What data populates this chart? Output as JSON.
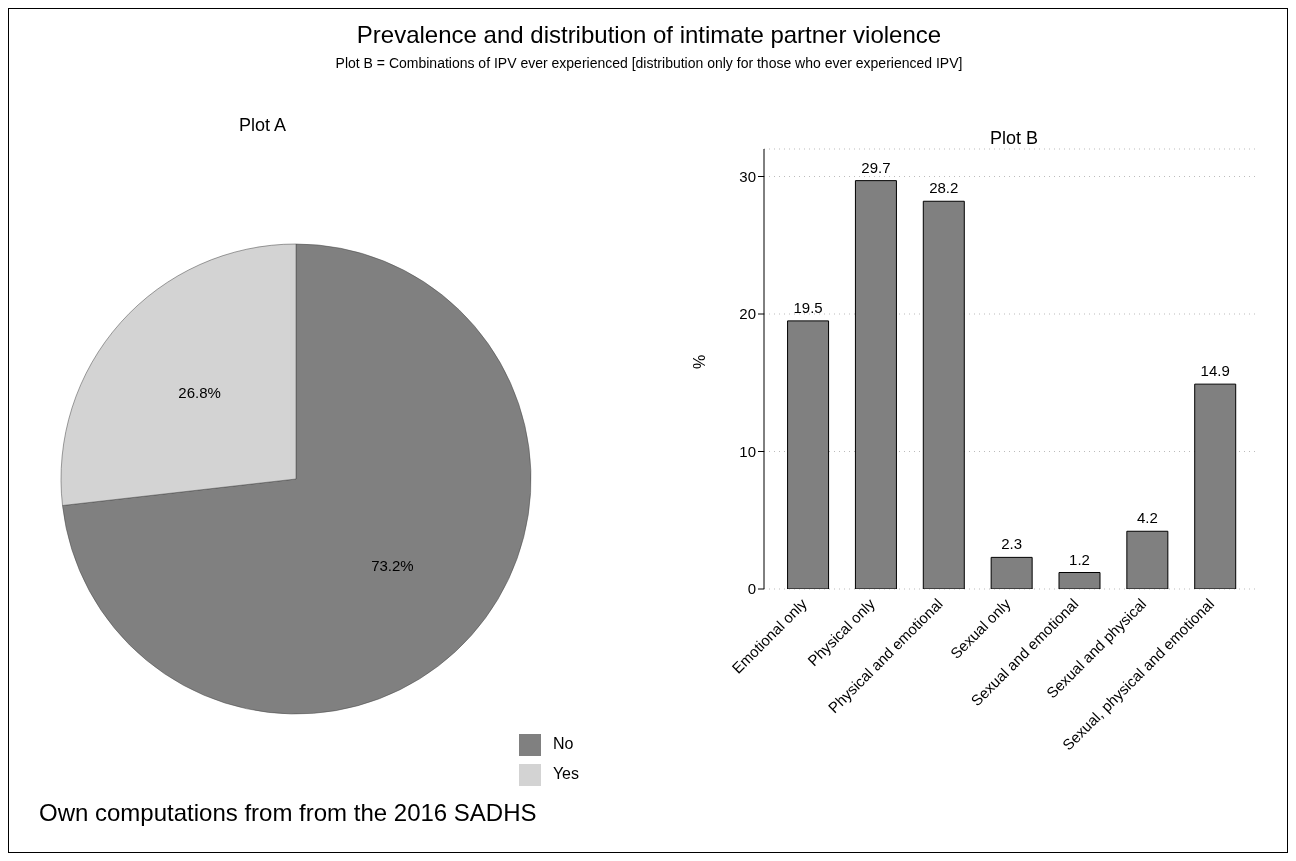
{
  "chart_data": [
    {
      "type": "other",
      "title": "Prevalence and distribution of intimate partner violence",
      "subtitle": "Plot B = Combinations of IPV ever experienced [distribution only for those who ever experienced IPV]"
    },
    {
      "type": "pie",
      "title": "Plot A",
      "categories": [
        "No",
        "Yes"
      ],
      "values": [
        73.2,
        26.8
      ],
      "colors": [
        "#808080",
        "#d3d3d3"
      ],
      "value_labels": [
        "73.2%",
        "26.8%"
      ],
      "legend": "bottom right",
      "annotations": [
        "Own computations from from the 2016 SADHS"
      ]
    },
    {
      "type": "bar",
      "title": "Plot B",
      "ylabel": "%",
      "categories": [
        "Emotional only",
        "Physical only",
        "Physical and emotional",
        "Sexual only",
        "Sexual and emotional",
        "Sexual and physical",
        "Sexual, physical and emotional"
      ],
      "values": [
        19.5,
        29.7,
        28.2,
        2.3,
        1.2,
        4.2,
        14.9
      ],
      "color": "#808080",
      "ylim": [
        0,
        32
      ],
      "yticks": [
        0,
        10,
        20,
        30
      ],
      "grid": "y",
      "data_labels": true
    }
  ]
}
